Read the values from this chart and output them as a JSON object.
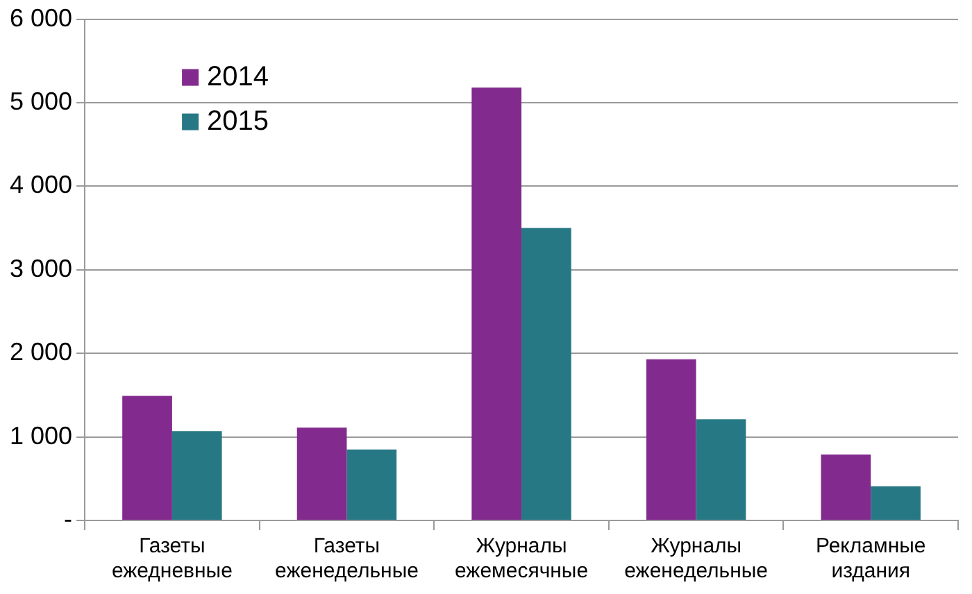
{
  "chart_data": {
    "type": "bar",
    "categories": [
      "Газеты\nежедневные",
      "Газеты\nеженедельные",
      "Журналы\nежемесячные",
      "Журналы\nеженедельные",
      "Рекламные\nиздания"
    ],
    "series": [
      {
        "name": "2014",
        "color": "#822a8e",
        "values": [
          1490,
          1110,
          5180,
          1930,
          790
        ]
      },
      {
        "name": "2015",
        "color": "#277885",
        "values": [
          1070,
          850,
          3500,
          1210,
          410
        ]
      }
    ],
    "ylim": [
      0,
      6000
    ],
    "yticks": [
      {
        "value": 0,
        "label": "-"
      },
      {
        "value": 1000,
        "label": "1 000"
      },
      {
        "value": 2000,
        "label": "2 000"
      },
      {
        "value": 3000,
        "label": "3 000"
      },
      {
        "value": 4000,
        "label": "4 000"
      },
      {
        "value": 5000,
        "label": "5 000"
      },
      {
        "value": 6000,
        "label": "6 000"
      }
    ],
    "grid": "y",
    "legend": "top left"
  }
}
